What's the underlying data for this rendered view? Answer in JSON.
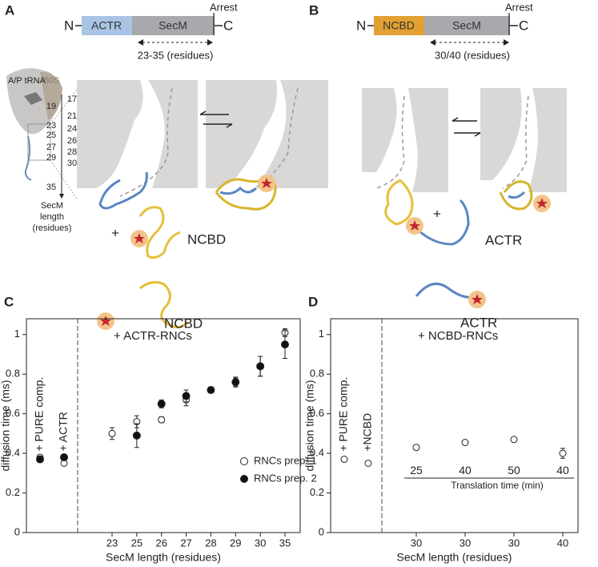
{
  "panels": {
    "A": {
      "letter": "A",
      "construct": {
        "n": "N",
        "domain": "ACTR",
        "secm": "SecM",
        "arrest": "Arrest",
        "c": "C",
        "range": "23-35 (residues)"
      },
      "trna": "A/P tRNA",
      "subunit": "50S",
      "ruler": [
        "17",
        "19",
        "21",
        "23",
        "24",
        "25",
        "26",
        "27",
        "28",
        "29",
        "30",
        "35"
      ],
      "ruler_title": [
        "SecM",
        "length",
        "(residues)"
      ],
      "plus": "+",
      "ligand": "NCBD",
      "free_ligand": "NCBD"
    },
    "B": {
      "letter": "B",
      "construct": {
        "n": "N",
        "domain": "NCBD",
        "secm": "SecM",
        "arrest": "Arrest",
        "c": "C",
        "range": "30/40 (residues)"
      },
      "plus": "+",
      "ligand": "ACTR",
      "free_ligand": "ACTR"
    }
  },
  "chart_data": [
    {
      "type": "scatter",
      "letter": "C",
      "annotation": "+ ACTR-RNCs",
      "ylabel": "diffusion time (ms)",
      "xlabel": "SecM length (residues)",
      "controls": [
        "+ PURE comp.",
        "+ ACTR"
      ],
      "categories": [
        "23",
        "25",
        "26",
        "27",
        "28",
        "29",
        "30",
        "35"
      ],
      "ylim": [
        0,
        1.08
      ],
      "yticks": [
        0,
        0.2,
        0.4,
        0.6,
        0.8,
        1
      ],
      "series": [
        {
          "name": "RNCs prep. 1",
          "filled": false,
          "control_values": [
            0.38,
            0.35
          ],
          "control_errors": [
            0.01,
            0.01
          ],
          "values": [
            0.5,
            0.56,
            0.57,
            0.67,
            0.72,
            0.76,
            0.84,
            1.01
          ],
          "errors": [
            0.03,
            0.03,
            0.015,
            0.03,
            0.01,
            0.02,
            0.05,
            0.02
          ]
        },
        {
          "name": "RNCs prep. 2",
          "filled": true,
          "control_values": [
            0.37,
            0.38
          ],
          "control_errors": [
            0.01,
            0.01
          ],
          "values": [
            null,
            0.49,
            0.65,
            0.69,
            0.72,
            0.76,
            0.84,
            0.95
          ],
          "errors": [
            null,
            0.06,
            0.02,
            0.03,
            0.015,
            0.025,
            0.05,
            0.07
          ]
        }
      ]
    },
    {
      "type": "scatter",
      "letter": "D",
      "annotation": "+ NCBD-RNCs",
      "ylabel": "diffusion time (ms)",
      "xlabel": "SecM length (residues)",
      "controls": [
        "+ PURE comp.",
        "+NCBD"
      ],
      "categories": [
        "30",
        "30",
        "30",
        "40"
      ],
      "secondary_labels": [
        "25",
        "40",
        "50",
        "40"
      ],
      "secondary_title": "Translation time (min)",
      "ylim": [
        0,
        1.08
      ],
      "yticks": [
        0,
        0.2,
        0.4,
        0.6,
        0.8,
        1
      ],
      "series": [
        {
          "name": "RNCs",
          "filled": false,
          "control_values": [
            0.37,
            0.35
          ],
          "control_errors": [
            0.01,
            0.005
          ],
          "values": [
            0.43,
            0.455,
            0.47,
            0.4
          ],
          "errors": [
            0.01,
            0.008,
            0.008,
            0.025
          ]
        }
      ]
    }
  ]
}
